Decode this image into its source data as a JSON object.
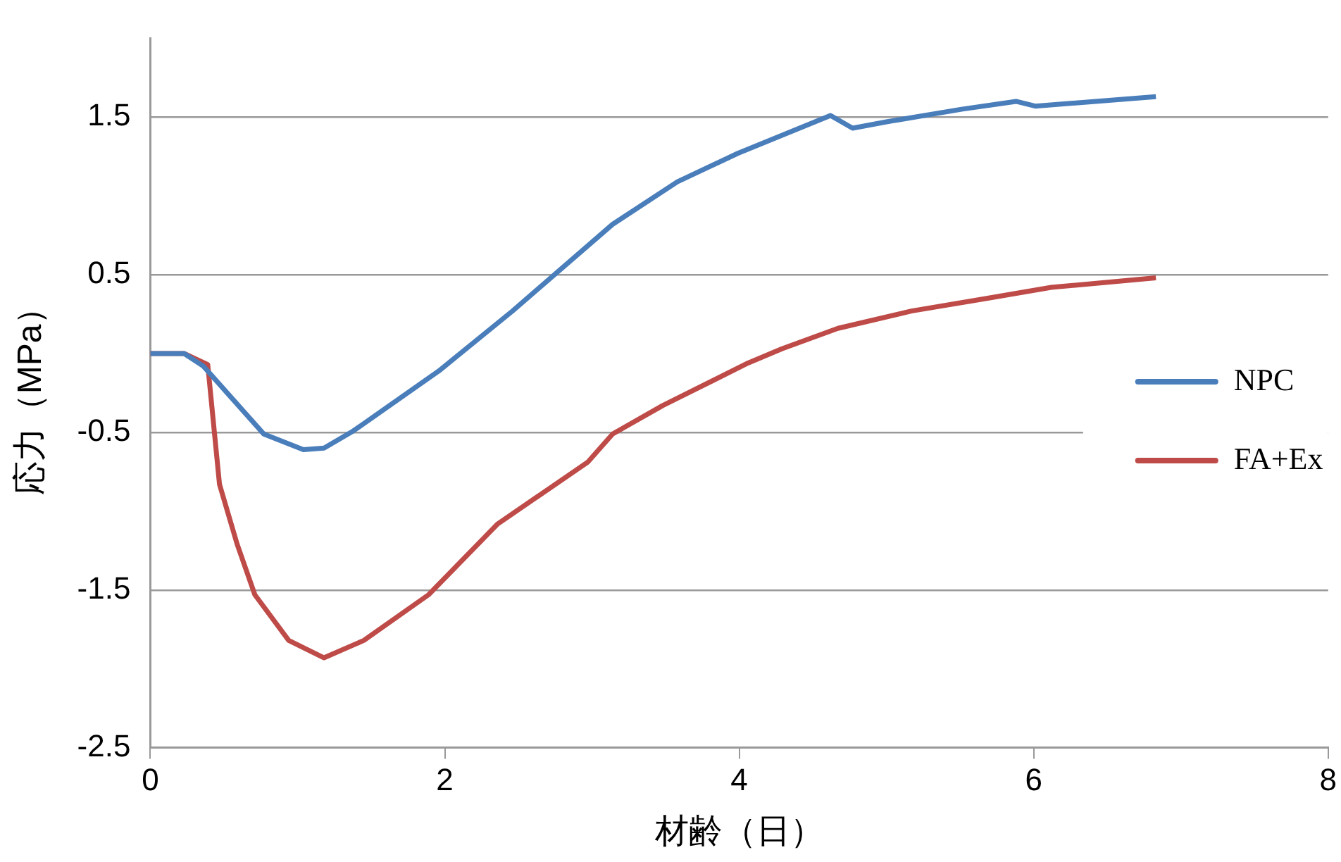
{
  "chart_data": {
    "type": "line",
    "xlabel": "材齢（日）",
    "ylabel": "応力（MPa）",
    "xlim": [
      0,
      8
    ],
    "xticks": [
      0,
      2,
      4,
      6,
      8
    ],
    "ylim": [
      -2.5,
      2
    ],
    "yticks": [
      -2.5,
      -1.5,
      -0.5,
      0.5,
      1.5
    ],
    "grid": "y",
    "legend": "right",
    "marker": "none",
    "line_style": "solid",
    "series": [
      {
        "name": "NPC",
        "color": "#4a7ebb",
        "x": [
          0,
          0.23,
          0.36,
          0.77,
          1.04,
          1.18,
          1.38,
          1.96,
          2.46,
          3.14,
          3.58,
          3.99,
          4.62,
          4.77,
          5.0,
          5.51,
          5.88,
          6.01,
          6.83
        ],
        "values": [
          0,
          0,
          -0.08,
          -0.51,
          -0.61,
          -0.6,
          -0.49,
          -0.11,
          0.27,
          0.82,
          1.09,
          1.27,
          1.51,
          1.43,
          1.47,
          1.55,
          1.6,
          1.57,
          1.63
        ]
      },
      {
        "name": "FA+Ex",
        "color": "#be4b48",
        "x": [
          0,
          0.23,
          0.39,
          0.47,
          0.59,
          0.71,
          0.94,
          1.18,
          1.45,
          1.89,
          2.36,
          2.97,
          3.14,
          3.48,
          4.06,
          4.29,
          4.67,
          5.17,
          5.68,
          6.12,
          6.83
        ],
        "values": [
          0,
          0,
          -0.07,
          -0.83,
          -1.21,
          -1.53,
          -1.82,
          -1.93,
          -1.82,
          -1.53,
          -1.08,
          -0.69,
          -0.51,
          -0.33,
          -0.06,
          0.03,
          0.16,
          0.27,
          0.35,
          0.42,
          0.48
        ]
      }
    ]
  }
}
